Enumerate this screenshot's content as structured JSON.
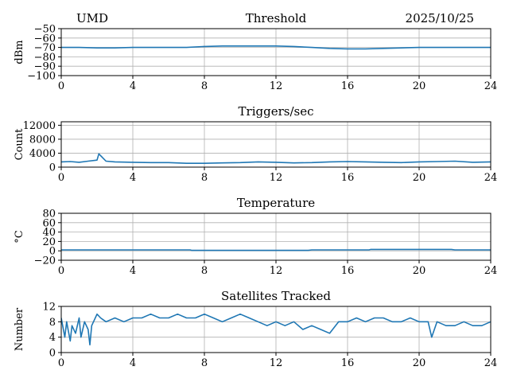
{
  "header": {
    "station": "UMD",
    "date": "2025/10/25"
  },
  "colors": {
    "line": "#1f77b4",
    "grid": "#b0b0b0",
    "axis": "#000000"
  },
  "chart_data": [
    {
      "type": "line",
      "title": "Threshold",
      "ylabel": "dBm",
      "xlim": [
        0,
        24
      ],
      "ylim": [
        -100,
        -50
      ],
      "xticks": [
        0,
        4,
        8,
        12,
        16,
        20,
        24
      ],
      "yticks": [
        -100,
        -90,
        -80,
        -70,
        -60,
        -50
      ],
      "xtick_labels": [
        "0",
        "4",
        "8",
        "12",
        "16",
        "20",
        "24"
      ],
      "ytick_labels": [
        "−100",
        "−90",
        "−80",
        "−70",
        "−60",
        "−50"
      ],
      "grid": true,
      "series": [
        {
          "x": [
            0,
            1,
            2,
            3,
            4,
            5,
            6,
            7,
            8,
            9,
            10,
            11,
            12,
            13,
            14,
            15,
            16,
            17,
            18,
            19,
            20,
            21,
            22,
            23,
            24
          ],
          "y": [
            -70,
            -70,
            -70.5,
            -70.5,
            -70,
            -70,
            -70,
            -70,
            -69,
            -68.5,
            -68.5,
            -68.5,
            -68.5,
            -69,
            -70,
            -71,
            -71.5,
            -71.5,
            -71,
            -70.5,
            -70,
            -70,
            -70,
            -70,
            -70
          ]
        }
      ]
    },
    {
      "type": "line",
      "title": "Triggers/sec",
      "ylabel": "Count",
      "xlim": [
        0,
        24
      ],
      "ylim": [
        0,
        13000
      ],
      "xticks": [
        0,
        4,
        8,
        12,
        16,
        20,
        24
      ],
      "yticks": [
        0,
        4000,
        8000,
        12000
      ],
      "xtick_labels": [
        "0",
        "4",
        "8",
        "12",
        "16",
        "20",
        "24"
      ],
      "ytick_labels": [
        "0",
        "4000",
        "8000",
        "12000"
      ],
      "grid": true,
      "series": [
        {
          "x": [
            0,
            0.5,
            1,
            1.5,
            2,
            2.1,
            2.5,
            3,
            4,
            5,
            6,
            7,
            8,
            9,
            10,
            11,
            12,
            13,
            14,
            15,
            16,
            17,
            18,
            19,
            20,
            21,
            22,
            23,
            24
          ],
          "y": [
            1500,
            1600,
            1400,
            1700,
            2000,
            3800,
            1700,
            1500,
            1400,
            1300,
            1300,
            1100,
            1100,
            1200,
            1300,
            1500,
            1400,
            1200,
            1300,
            1500,
            1600,
            1500,
            1400,
            1300,
            1500,
            1600,
            1700,
            1400,
            1500
          ]
        }
      ]
    },
    {
      "type": "line",
      "title": "Temperature",
      "ylabel": "°C",
      "xlim": [
        0,
        24
      ],
      "ylim": [
        -20,
        80
      ],
      "xticks": [
        0,
        4,
        8,
        12,
        16,
        20,
        24
      ],
      "yticks": [
        -20,
        0,
        20,
        40,
        60,
        80
      ],
      "xtick_labels": [
        "0",
        "4",
        "8",
        "12",
        "16",
        "20",
        "24"
      ],
      "ytick_labels": [
        "−20",
        "0",
        "20",
        "40",
        "60",
        "80"
      ],
      "grid": true,
      "series": [
        {
          "x": [
            0,
            2,
            4,
            6,
            7.2,
            7.3,
            10,
            12,
            13.8,
            14,
            16,
            17.2,
            17.3,
            20,
            21.8,
            22,
            24
          ],
          "y": [
            2,
            2,
            2,
            2,
            2,
            1,
            1,
            1,
            1,
            2,
            2,
            2,
            3,
            3,
            3,
            2,
            2
          ]
        }
      ]
    },
    {
      "type": "line",
      "title": "Satellites Tracked",
      "ylabel": "Number",
      "xlim": [
        0,
        24
      ],
      "ylim": [
        0,
        12
      ],
      "xticks": [
        0,
        4,
        8,
        12,
        16,
        20,
        24
      ],
      "yticks": [
        0,
        4,
        8,
        12
      ],
      "xtick_labels": [
        "0",
        "4",
        "8",
        "12",
        "16",
        "20",
        "24"
      ],
      "ytick_labels": [
        "0",
        "4",
        "8",
        "12"
      ],
      "grid": true,
      "series": [
        {
          "x": [
            0,
            0.2,
            0.3,
            0.5,
            0.6,
            0.8,
            1.0,
            1.1,
            1.3,
            1.5,
            1.6,
            1.7,
            1.9,
            2.0,
            2.2,
            2.5,
            3.0,
            3.5,
            4.0,
            4.5,
            5.0,
            5.5,
            6.0,
            6.5,
            7.0,
            7.5,
            8.0,
            8.5,
            9.0,
            9.5,
            10.0,
            10.5,
            11.0,
            11.5,
            12.0,
            12.5,
            13.0,
            13.5,
            14.0,
            14.5,
            15.0,
            15.5,
            16.0,
            16.5,
            17.0,
            17.5,
            18.0,
            18.5,
            19.0,
            19.5,
            20.0,
            20.5,
            20.7,
            21.0,
            21.5,
            22.0,
            22.5,
            23.0,
            23.5,
            24.0
          ],
          "y": [
            9,
            4,
            8,
            3,
            7,
            5,
            9,
            4,
            8,
            6,
            2,
            7,
            9,
            10,
            9,
            8,
            9,
            8,
            9,
            9,
            10,
            9,
            9,
            10,
            9,
            9,
            10,
            9,
            8,
            9,
            10,
            9,
            8,
            7,
            8,
            7,
            8,
            6,
            7,
            6,
            5,
            8,
            8,
            9,
            8,
            9,
            9,
            8,
            8,
            9,
            8,
            8,
            4,
            8,
            7,
            7,
            8,
            7,
            7,
            8
          ]
        }
      ]
    }
  ]
}
